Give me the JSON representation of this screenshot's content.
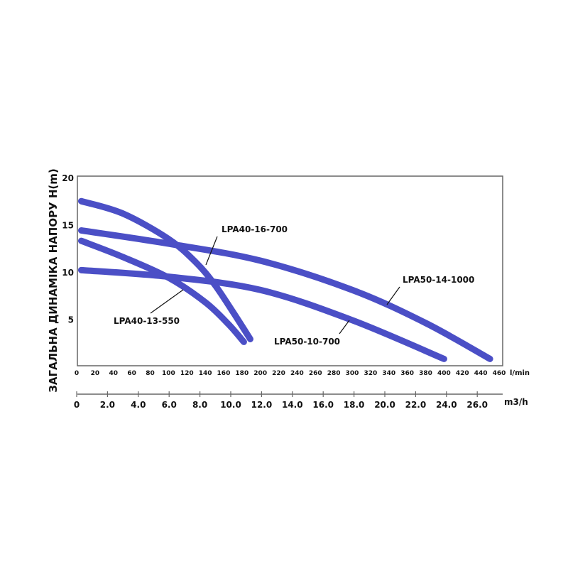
{
  "chart_data": {
    "type": "line",
    "title": "",
    "ylabel": "ЗАГАЛЬНА ДИНАМІКА НАПОРУ H(m)",
    "xlabel": "l/min",
    "x2label": "m3/h",
    "xlim": [
      0,
      460
    ],
    "ylim": [
      0,
      20
    ],
    "x_ticks": [
      0,
      20,
      40,
      60,
      80,
      100,
      120,
      140,
      160,
      180,
      200,
      220,
      240,
      260,
      280,
      300,
      320,
      340,
      360,
      380,
      400,
      420,
      440,
      460
    ],
    "y_ticks": [
      5,
      10,
      15,
      20
    ],
    "x2_ticks": [
      "0",
      "2.0",
      "4.0",
      "6.0",
      "8.0",
      "10.0",
      "12.0",
      "14.0",
      "16.0",
      "18.0",
      "20.0",
      "22.0",
      "24.0",
      "26.0"
    ],
    "grid": false,
    "line_color": "#4b4fc6",
    "series": [
      {
        "name": "LPA40-16-700",
        "points": [
          [
            5,
            17.5
          ],
          [
            50,
            16.2
          ],
          [
            100,
            13.5
          ],
          [
            130,
            11.0
          ],
          [
            150,
            8.7
          ],
          [
            170,
            5.8
          ],
          [
            189,
            2.9
          ]
        ]
      },
      {
        "name": "LPA40-13-550",
        "points": [
          [
            5,
            13.3
          ],
          [
            50,
            11.6
          ],
          [
            100,
            9.4
          ],
          [
            140,
            6.8
          ],
          [
            165,
            4.5
          ],
          [
            182,
            2.6
          ]
        ]
      },
      {
        "name": "LPA50-14-1000",
        "points": [
          [
            5,
            14.4
          ],
          [
            100,
            13.0
          ],
          [
            200,
            11.2
          ],
          [
            300,
            8.1
          ],
          [
            380,
            4.6
          ],
          [
            450,
            0.8
          ]
        ]
      },
      {
        "name": "LPA50-10-700",
        "points": [
          [
            5,
            10.2
          ],
          [
            100,
            9.5
          ],
          [
            200,
            8.1
          ],
          [
            300,
            4.9
          ],
          [
            400,
            0.8
          ]
        ]
      }
    ]
  }
}
